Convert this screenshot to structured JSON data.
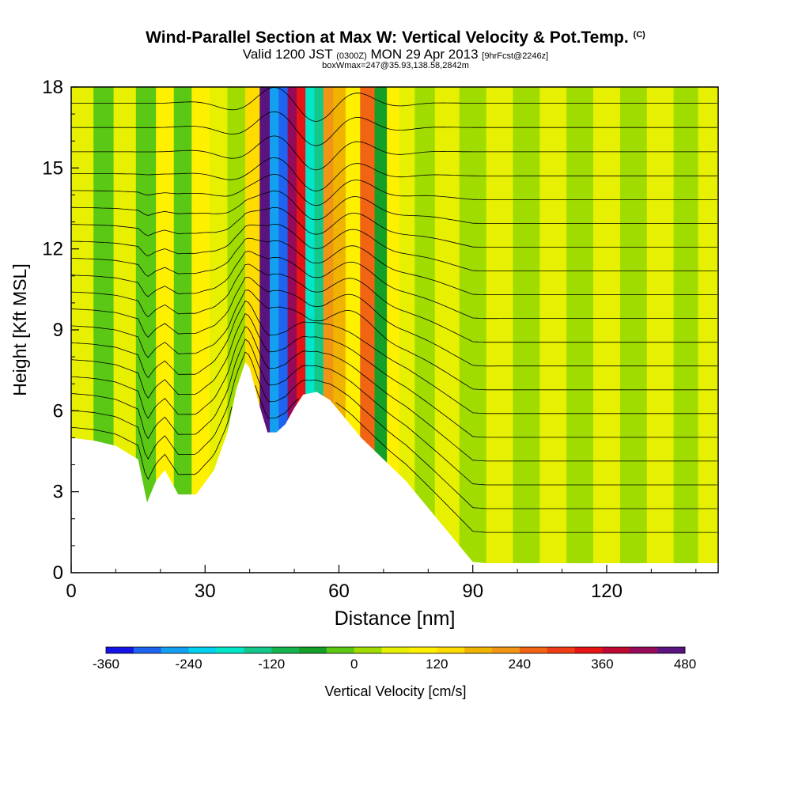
{
  "header": {
    "title": "Wind-Parallel Section at Max W: Vertical Velocity & Pot.Temp.",
    "title_unit": "(C)",
    "valid_prefix": "Valid 1200 JST",
    "valid_utc": "(0300Z)",
    "valid_date": "MON 29 Apr 2013",
    "forecast": "[9hrFcst@2246z]",
    "box_info": "boxWmax=247@35.93,138.58,2842m"
  },
  "chart_data": {
    "type": "heatmap",
    "xlabel": "Distance [nm]",
    "ylabel": "Height [Kft MSL]",
    "xlim": [
      0,
      145
    ],
    "ylim": [
      0,
      18
    ],
    "x_ticks": [
      0,
      30,
      60,
      90,
      120
    ],
    "y_ticks": [
      0,
      3,
      6,
      9,
      12,
      15,
      18
    ],
    "terrain_kft": {
      "x": [
        0,
        5,
        10,
        15,
        17,
        19,
        21,
        24,
        28,
        32,
        35,
        37,
        39,
        40,
        42,
        44,
        46,
        48,
        50,
        52,
        55,
        58,
        60,
        62,
        65,
        70,
        75,
        80,
        85,
        88,
        90,
        93,
        100,
        110,
        120,
        130,
        140,
        145
      ],
      "y": [
        5.0,
        4.9,
        4.7,
        4.2,
        2.6,
        3.4,
        3.8,
        2.9,
        2.9,
        3.8,
        5.2,
        6.8,
        7.8,
        7.6,
        6.3,
        5.2,
        5.2,
        5.5,
        6.1,
        6.6,
        6.7,
        6.4,
        6.0,
        5.6,
        5.0,
        4.2,
        3.4,
        2.4,
        1.4,
        0.8,
        0.4,
        0.35,
        0.35,
        0.35,
        0.35,
        0.35,
        0.35,
        0.35
      ]
    },
    "vertical_velocity_cm_s": {
      "columns_x": [
        3,
        7,
        12,
        17,
        21,
        25,
        29,
        33,
        37,
        41,
        43.5,
        45.5,
        47.5,
        49.5,
        51.5,
        53.5,
        55.5,
        57.5,
        60,
        63,
        66.5,
        69.5,
        72,
        75,
        79,
        84,
        90,
        96,
        102,
        108,
        114,
        120,
        126,
        132,
        138,
        143
      ],
      "columns_w": [
        20,
        -60,
        30,
        -50,
        60,
        -70,
        40,
        20,
        -20,
        80,
        420,
        -300,
        -360,
        380,
        280,
        -220,
        -180,
        160,
        120,
        60,
        200,
        -120,
        60,
        30,
        -40,
        20,
        -30,
        20,
        -20,
        30,
        -20,
        10,
        -30,
        20,
        -10,
        30
      ]
    },
    "colorbar": {
      "label": "Vertical Velocity [cm/s]",
      "ticks": [
        "-360",
        "-240",
        "-120",
        "0",
        "120",
        "240",
        "360",
        "480"
      ],
      "colors": [
        "#1414e6",
        "#1e64f0",
        "#14a0f0",
        "#00d2f0",
        "#00e6c8",
        "#14c88c",
        "#14b450",
        "#14a028",
        "#5ac814",
        "#a0dc00",
        "#e6f000",
        "#fff000",
        "#ffdc00",
        "#f0b400",
        "#f09614",
        "#f06414",
        "#f03c14",
        "#e61414",
        "#be0a32",
        "#960a5a",
        "#5a147f"
      ]
    }
  }
}
